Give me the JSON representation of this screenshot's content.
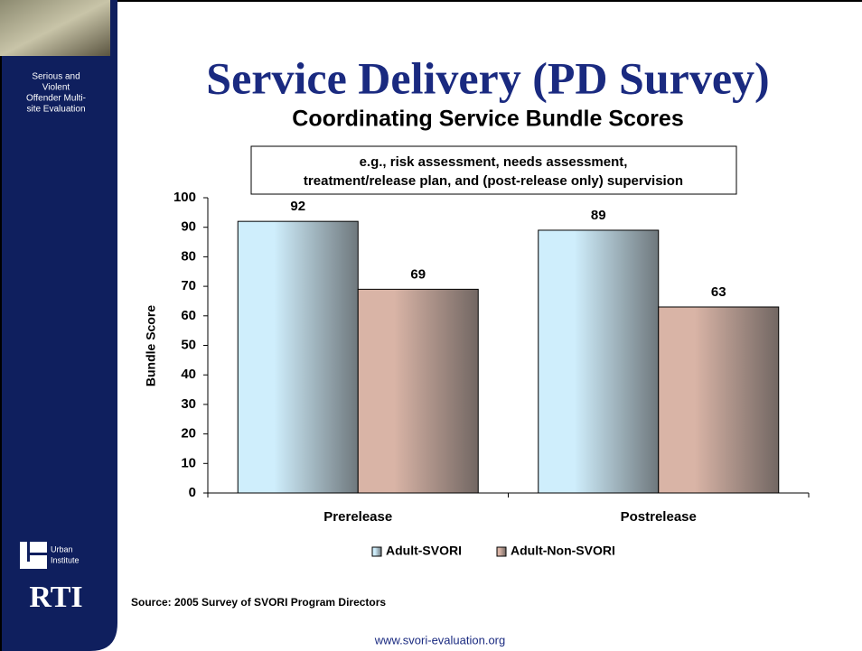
{
  "sidebar": {
    "project": [
      "Serious and",
      "Violent",
      "Offender Multi-",
      "site Evaluation"
    ],
    "urban": [
      "Urban",
      "Institute"
    ],
    "rti": "RTI"
  },
  "title": "Service Delivery (PD Survey)",
  "source": "Source: 2005 Survey of SVORI Program Directors",
  "footer": "www.svori-evaluation.org",
  "chart_data": {
    "type": "bar",
    "title": "Coordinating Service Bundle Scores",
    "annotation": [
      "e.g., risk assessment, needs assessment,",
      "treatment/release plan, and (post-release only) supervision"
    ],
    "ylabel": "Bundle Score",
    "categories": [
      "Prerelease",
      "Postrelease"
    ],
    "series": [
      {
        "name": "Adult-SVORI",
        "color": "#cfeefc",
        "values": [
          92,
          89
        ]
      },
      {
        "name": "Adult-Non-SVORI",
        "color": "#d9b4a6",
        "values": [
          69,
          63
        ]
      }
    ],
    "ylim": [
      0,
      100
    ],
    "yticks": [
      0,
      10,
      20,
      30,
      40,
      50,
      60,
      70,
      80,
      90,
      100
    ],
    "legend": "bottom"
  }
}
